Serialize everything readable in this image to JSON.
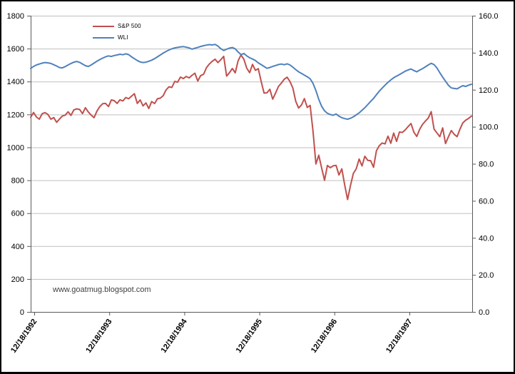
{
  "chart_data": {
    "type": "line",
    "title": "",
    "watermark": "www.goatmug.blogspot.com",
    "legend_position": "inside-top-left",
    "x_tick_labels": [
      "12/18/1992",
      "12/18/1993",
      "12/18/1994",
      "12/18/1995",
      "12/18/1996",
      "12/18/1997"
    ],
    "left_axis": {
      "min": 0,
      "max": 1800,
      "step": 200,
      "tick_labels": [
        "1800",
        "1600",
        "1400",
        "1200",
        "1000",
        "800",
        "600",
        "400",
        "200",
        "0"
      ]
    },
    "right_axis": {
      "min": 0,
      "max": 160,
      "step": 20,
      "tick_labels": [
        "160.0",
        "140.0",
        "120.0",
        "100.0",
        "80.0",
        "60.0",
        "40.0",
        "20.0",
        "0.0"
      ]
    },
    "gridlines": {
      "orientation": "horizontal",
      "color": "#BFBFBF",
      "at_left_axis_step": 200
    },
    "axis_line_color": "#595959",
    "series": [
      {
        "name": "S&P 500",
        "axis": "left",
        "color": "#C0504D",
        "values": [
          1183,
          1212,
          1184,
          1171,
          1205,
          1211,
          1200,
          1171,
          1181,
          1152,
          1172,
          1190,
          1196,
          1216,
          1194,
          1228,
          1234,
          1230,
          1205,
          1241,
          1215,
          1196,
          1180,
          1220,
          1248,
          1265,
          1267,
          1248,
          1288,
          1284,
          1267,
          1289,
          1282,
          1303,
          1295,
          1311,
          1326,
          1267,
          1288,
          1252,
          1270,
          1236,
          1278,
          1266,
          1295,
          1299,
          1314,
          1349,
          1368,
          1364,
          1401,
          1396,
          1427,
          1418,
          1431,
          1422,
          1438,
          1451,
          1403,
          1436,
          1444,
          1484,
          1506,
          1523,
          1536,
          1515,
          1533,
          1553,
          1433,
          1454,
          1479,
          1453,
          1526,
          1562,
          1535,
          1481,
          1454,
          1504,
          1468,
          1478,
          1401,
          1330,
          1331,
          1353,
          1293,
          1330,
          1370,
          1390,
          1414,
          1426,
          1400,
          1360,
          1280,
          1239,
          1258,
          1296,
          1242,
          1255,
          1099,
          899,
          952,
          873,
          800,
          890,
          876,
          888,
          890,
          832,
          869,
          770,
          683,
          769,
          842,
          869,
          929,
          887,
          946,
          921,
          919,
          879,
          979,
          1010,
          1026,
          1021,
          1068,
          1025,
          1087,
          1036,
          1093,
          1091,
          1106,
          1126,
          1145,
          1092,
          1066,
          1109,
          1139,
          1160,
          1178,
          1217,
          1111,
          1088,
          1065,
          1118,
          1023,
          1065,
          1102,
          1079,
          1065,
          1110,
          1149,
          1165,
          1176,
          1190
        ]
      },
      {
        "name": "WLI",
        "axis": "right",
        "color": "#4F81BD",
        "values": [
          131.5,
          132.6,
          133.4,
          133.9,
          134.4,
          134.7,
          134.5,
          134.2,
          133.5,
          132.8,
          132.0,
          131.8,
          132.5,
          133.4,
          134.2,
          134.9,
          135.3,
          134.8,
          133.9,
          133.0,
          132.6,
          133.4,
          134.4,
          135.4,
          136.3,
          137.1,
          137.8,
          138.3,
          138.0,
          138.5,
          138.8,
          139.2,
          138.9,
          139.4,
          139.0,
          137.8,
          136.8,
          135.8,
          135.0,
          134.7,
          134.9,
          135.4,
          136.0,
          136.8,
          137.8,
          138.8,
          139.8,
          140.7,
          141.5,
          142.1,
          142.6,
          142.9,
          143.1,
          143.3,
          143.0,
          142.6,
          141.9,
          142.4,
          142.9,
          143.4,
          143.8,
          144.1,
          144.4,
          144.2,
          144.5,
          143.6,
          142.2,
          141.2,
          141.9,
          142.5,
          142.8,
          142.1,
          140.4,
          139.0,
          139.6,
          138.3,
          137.3,
          136.6,
          135.8,
          134.5,
          133.6,
          132.6,
          131.6,
          132.0,
          132.6,
          133.1,
          133.6,
          133.9,
          133.5,
          134.0,
          133.4,
          132.2,
          130.9,
          129.7,
          128.8,
          127.9,
          127.0,
          125.9,
          123.5,
          119.5,
          114.8,
          111.0,
          108.6,
          107.3,
          106.6,
          106.2,
          106.9,
          105.7,
          104.9,
          104.4,
          104.1,
          104.6,
          105.4,
          106.4,
          107.5,
          108.9,
          110.3,
          112.0,
          113.7,
          115.3,
          117.3,
          119.2,
          120.9,
          122.5,
          124.0,
          125.3,
          126.5,
          127.4,
          128.2,
          129.1,
          130.0,
          130.7,
          131.2,
          130.4,
          129.7,
          130.6,
          131.4,
          132.4,
          133.4,
          134.3,
          133.6,
          131.8,
          129.2,
          126.8,
          124.6,
          122.4,
          121.0,
          120.7,
          120.5,
          121.4,
          122.2,
          121.8,
          122.5,
          123.0
        ]
      }
    ]
  }
}
